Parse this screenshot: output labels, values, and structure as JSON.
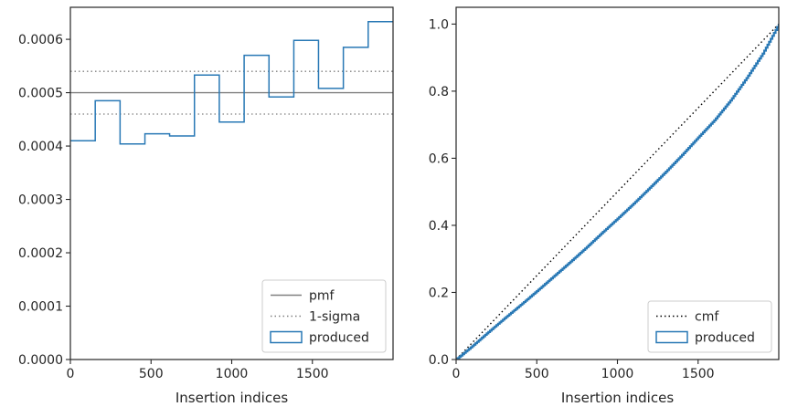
{
  "chart_data": [
    {
      "type": "line",
      "xlabel": "Insertion indices",
      "xlim": [
        0,
        2000
      ],
      "ylim": [
        0,
        0.00066
      ],
      "xticks": [
        0,
        500,
        1000,
        1500
      ],
      "xtick_labels": [
        "0",
        "500",
        "1000",
        "1500"
      ],
      "yticks": [
        0,
        0.0001,
        0.0002,
        0.0003,
        0.0004,
        0.0005,
        0.0006
      ],
      "ytick_labels": [
        "0.0000",
        "0.0001",
        "0.0002",
        "0.0003",
        "0.0004",
        "0.0005",
        "0.0006"
      ],
      "reference_lines": [
        {
          "name": "pmf",
          "y": 0.0005,
          "style": "solid",
          "color": "#808080"
        },
        {
          "name": "1-sigma",
          "y": 0.00054,
          "style": "dotted",
          "color": "#808080"
        },
        {
          "name": "1-sigma",
          "y": 0.00046,
          "style": "dotted",
          "color": "#808080"
        }
      ],
      "histogram": {
        "name": "produced",
        "color": "#2878b5",
        "bin_edges": [
          0,
          154,
          308,
          462,
          615,
          769,
          923,
          1077,
          1231,
          1385,
          1538,
          1692,
          1846,
          2000
        ],
        "values": [
          0.00041,
          0.000485,
          0.000404,
          0.000423,
          0.000419,
          0.000533,
          0.000445,
          0.00057,
          0.000492,
          0.000598,
          0.000508,
          0.000585,
          0.000633
        ]
      },
      "legend": {
        "position": "lower-right",
        "entries": [
          {
            "label": "pmf",
            "style": "solid"
          },
          {
            "label": "1-sigma",
            "style": "dotted"
          },
          {
            "label": "produced",
            "style": "patch"
          }
        ]
      },
      "grid": false
    },
    {
      "type": "line",
      "xlabel": "Insertion indices",
      "xlim": [
        0,
        2000
      ],
      "ylim": [
        0,
        1.05
      ],
      "xticks": [
        0,
        500,
        1000,
        1500
      ],
      "xtick_labels": [
        "0",
        "500",
        "1000",
        "1500"
      ],
      "yticks": [
        0,
        0.2,
        0.4,
        0.6,
        0.8,
        1.0
      ],
      "ytick_labels": [
        "0.0",
        "0.2",
        "0.4",
        "0.6",
        "0.8",
        "1.0"
      ],
      "series": [
        {
          "name": "cmf",
          "style": "dotted",
          "color": "#000000",
          "x": [
            0,
            2000
          ],
          "y": [
            0,
            1.0
          ]
        },
        {
          "name": "produced",
          "style": "step",
          "color": "#2878b5",
          "x": [
            0,
            100,
            200,
            300,
            400,
            500,
            600,
            700,
            800,
            900,
            1000,
            1100,
            1200,
            1300,
            1400,
            1500,
            1600,
            1700,
            1800,
            1900,
            2000
          ],
          "y": [
            0,
            0.04,
            0.082,
            0.123,
            0.163,
            0.204,
            0.246,
            0.288,
            0.331,
            0.376,
            0.42,
            0.465,
            0.512,
            0.56,
            0.61,
            0.662,
            0.713,
            0.772,
            0.839,
            0.912,
            1.0
          ]
        }
      ],
      "legend": {
        "position": "lower-right",
        "entries": [
          {
            "label": "cmf",
            "style": "dotted"
          },
          {
            "label": "produced",
            "style": "patch"
          }
        ]
      },
      "grid": false
    }
  ]
}
